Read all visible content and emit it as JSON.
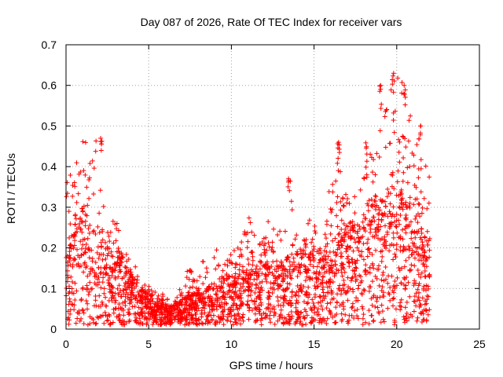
{
  "chart_data": {
    "type": "scatter",
    "title": "Day 087 of 2026, Rate Of TEC Index for receiver vars",
    "xlabel": "GPS time / hours",
    "ylabel": "ROTI / TECUs",
    "xlim": [
      0,
      25
    ],
    "ylim": [
      0,
      0.7
    ],
    "xticks": [
      0,
      5,
      10,
      15,
      20,
      25
    ],
    "xtick_labels": [
      "0",
      "5",
      "10",
      "15",
      "20",
      "25"
    ],
    "yticks": [
      0,
      0.1,
      0.2,
      0.3,
      0.4,
      0.5,
      0.6,
      0.7
    ],
    "ytick_labels": [
      "0",
      "0.1",
      "0.2",
      "0.3",
      "0.4",
      "0.5",
      "0.6",
      "0.7"
    ],
    "grid": true,
    "marker": "+",
    "marker_color": "#ff0000",
    "data_range_hours": [
      0,
      22
    ],
    "series": [
      {
        "name": "ROTI",
        "envelope_hours": [
          0,
          0.5,
          1,
          1.5,
          2,
          2.5,
          3,
          3.5,
          4,
          4.5,
          5,
          5.5,
          6,
          6.5,
          7,
          7.5,
          8,
          8.5,
          9,
          9.5,
          10,
          10.5,
          11,
          11.5,
          12,
          12.5,
          13,
          13.5,
          14,
          14.5,
          15,
          15.5,
          16,
          16.5,
          17,
          17.5,
          18,
          18.5,
          19,
          19.5,
          20,
          20.5,
          21,
          21.5,
          22
        ],
        "envelope_max": [
          0.35,
          0.45,
          0.48,
          0.45,
          0.48,
          0.3,
          0.29,
          0.2,
          0.17,
          0.13,
          0.12,
          0.11,
          0.08,
          0.07,
          0.13,
          0.15,
          0.12,
          0.22,
          0.22,
          0.2,
          0.22,
          0.2,
          0.28,
          0.27,
          0.27,
          0.26,
          0.25,
          0.37,
          0.26,
          0.27,
          0.3,
          0.25,
          0.36,
          0.46,
          0.35,
          0.34,
          0.46,
          0.48,
          0.55,
          0.6,
          0.63,
          0.6,
          0.5,
          0.5,
          0.37
        ],
        "envelope_mean": [
          0.1,
          0.15,
          0.2,
          0.16,
          0.15,
          0.12,
          0.12,
          0.1,
          0.08,
          0.06,
          0.05,
          0.04,
          0.03,
          0.03,
          0.04,
          0.05,
          0.05,
          0.06,
          0.07,
          0.07,
          0.08,
          0.08,
          0.09,
          0.1,
          0.1,
          0.1,
          0.1,
          0.11,
          0.11,
          0.12,
          0.12,
          0.12,
          0.13,
          0.15,
          0.16,
          0.16,
          0.18,
          0.2,
          0.2,
          0.22,
          0.22,
          0.2,
          0.18,
          0.15,
          0.12
        ],
        "spikes": [
          {
            "x": 13.5,
            "y": 0.37
          },
          {
            "x": 16.5,
            "y": 0.46
          },
          {
            "x": 19.0,
            "y": 0.6
          },
          {
            "x": 19.8,
            "y": 0.63
          },
          {
            "x": 20.5,
            "y": 0.6
          },
          {
            "x": 21.4,
            "y": 0.5
          },
          {
            "x": 2.1,
            "y": 0.47
          }
        ]
      }
    ]
  }
}
